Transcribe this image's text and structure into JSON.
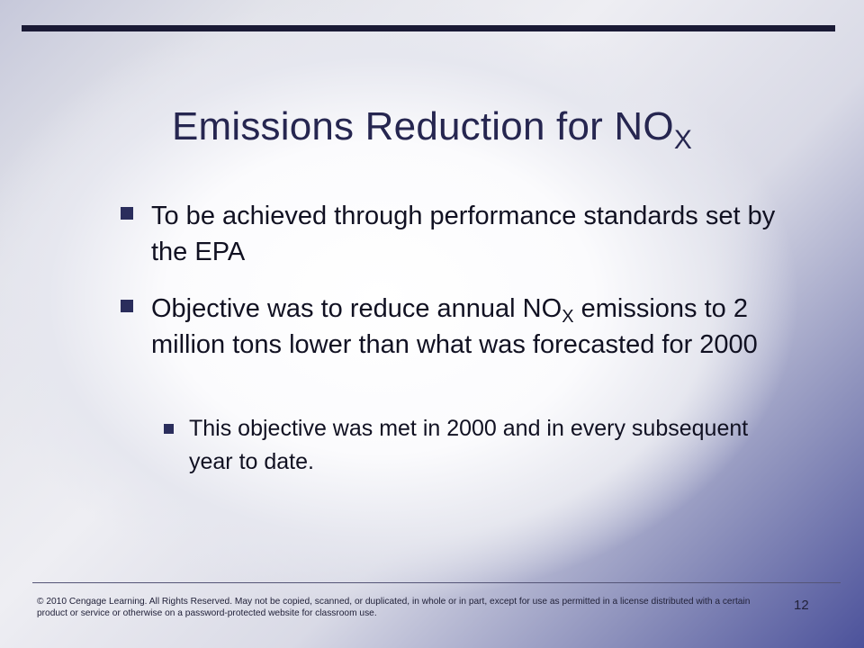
{
  "slide": {
    "title_main": "Emissions Reduction for NO",
    "title_sub": "X",
    "bullets": [
      {
        "text": "To be achieved through performance standards set by the EPA"
      },
      {
        "text_before": "Objective was to reduce annual NO",
        "text_sub": "X",
        "text_after": " emissions to 2 million tons lower than what was forecasted for 2000"
      }
    ],
    "sub_bullets": [
      {
        "text": "This objective was met in 2000 and in every subsequent year to date."
      }
    ]
  },
  "footer": {
    "copyright": "© 2010 Cengage Learning. All Rights Reserved. May not be copied, scanned, or duplicated, in whole or in part, except for use as permitted in a license distributed with a certain product or service or otherwise on a password-protected website for classroom use.",
    "page_number": "12"
  },
  "colors": {
    "title": "#262650",
    "bullet_marker": "#2a2d5c",
    "top_rule": "#1a1a35",
    "gradient_corner": "#4c529b"
  }
}
